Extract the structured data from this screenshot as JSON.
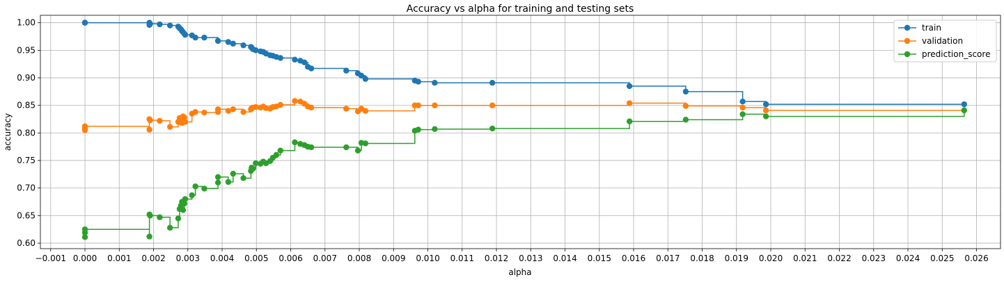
{
  "chart_data": {
    "type": "line",
    "title": "Accuracy vs alpha for training and testing sets",
    "xlabel": "alpha",
    "ylabel": "accuracy",
    "xlim": [
      -0.0013,
      0.0267
    ],
    "ylim": [
      0.59,
      1.0135
    ],
    "grid": true,
    "legend_position": "top-right",
    "drawstyle": "steps-post",
    "marker": "o",
    "xticks": [
      "−0.001",
      "0.000",
      "0.001",
      "0.002",
      "0.003",
      "0.004",
      "0.005",
      "0.006",
      "0.007",
      "0.008",
      "0.009",
      "0.010",
      "0.011",
      "0.012",
      "0.013",
      "0.014",
      "0.015",
      "0.016",
      "0.017",
      "0.018",
      "0.019",
      "0.020",
      "0.021",
      "0.022",
      "0.023",
      "0.024",
      "0.025",
      "0.026"
    ],
    "xtick_values": [
      -0.001,
      0.0,
      0.001,
      0.002,
      0.003,
      0.004,
      0.005,
      0.006,
      0.007,
      0.008,
      0.009,
      0.01,
      0.011,
      0.012,
      0.013,
      0.014,
      0.015,
      0.016,
      0.017,
      0.018,
      0.019,
      0.02,
      0.021,
      0.022,
      0.023,
      0.024,
      0.025,
      0.026
    ],
    "yticks": [
      "0.60",
      "0.65",
      "0.70",
      "0.75",
      "0.80",
      "0.85",
      "0.90",
      "0.95",
      "1.00"
    ],
    "ytick_values": [
      0.6,
      0.65,
      0.7,
      0.75,
      0.8,
      0.85,
      0.9,
      0.95,
      1.0
    ],
    "x": [
      0.0,
      0.0,
      0.0,
      0.00188,
      0.00188,
      0.0019,
      0.00218,
      0.00248,
      0.00272,
      0.00276,
      0.0028,
      0.00283,
      0.00286,
      0.0029,
      0.00292,
      0.00312,
      0.00322,
      0.00348,
      0.00388,
      0.00388,
      0.00418,
      0.00432,
      0.00462,
      0.00484,
      0.00486,
      0.0049,
      0.00498,
      0.00512,
      0.0052,
      0.00528,
      0.0054,
      0.00548,
      0.00558,
      0.0057,
      0.00612,
      0.00628,
      0.0064,
      0.0065,
      0.0066,
      0.00762,
      0.00796,
      0.00806,
      0.00818,
      0.00962,
      0.00972,
      0.0102,
      0.01188,
      0.01588,
      0.01752,
      0.01918,
      0.01986,
      0.02564
    ],
    "series": [
      {
        "name": "train",
        "color": "#1f77b4",
        "values": [
          1.0,
          1.0,
          1.0,
          1.0,
          0.996,
          0.998,
          0.997,
          0.995,
          0.993,
          0.99,
          0.988,
          0.985,
          0.983,
          0.98,
          0.978,
          0.977,
          0.973,
          0.973,
          0.967,
          0.967,
          0.965,
          0.962,
          0.959,
          0.956,
          0.955,
          0.952,
          0.95,
          0.948,
          0.947,
          0.944,
          0.941,
          0.94,
          0.938,
          0.936,
          0.933,
          0.931,
          0.928,
          0.92,
          0.917,
          0.913,
          0.908,
          0.904,
          0.898,
          0.895,
          0.893,
          0.891,
          0.891,
          0.885,
          0.875,
          0.857,
          0.852,
          0.852
        ]
      },
      {
        "name": "validation",
        "color": "#ff7f0e",
        "values": [
          0.805,
          0.808,
          0.812,
          0.806,
          0.825,
          0.823,
          0.822,
          0.811,
          0.82,
          0.827,
          0.822,
          0.818,
          0.83,
          0.828,
          0.82,
          0.835,
          0.838,
          0.837,
          0.838,
          0.843,
          0.84,
          0.843,
          0.838,
          0.843,
          0.845,
          0.846,
          0.847,
          0.846,
          0.848,
          0.845,
          0.844,
          0.847,
          0.848,
          0.851,
          0.858,
          0.857,
          0.853,
          0.848,
          0.846,
          0.844,
          0.839,
          0.844,
          0.84,
          0.85,
          0.85,
          0.85,
          0.85,
          0.854,
          0.849,
          0.846,
          0.841,
          0.841
        ]
      },
      {
        "name": "prediction_score",
        "color": "#2ca02c",
        "values": [
          0.611,
          0.619,
          0.625,
          0.612,
          0.652,
          0.65,
          0.647,
          0.628,
          0.645,
          0.662,
          0.668,
          0.675,
          0.66,
          0.672,
          0.68,
          0.687,
          0.703,
          0.699,
          0.71,
          0.72,
          0.711,
          0.726,
          0.718,
          0.731,
          0.737,
          0.735,
          0.745,
          0.744,
          0.748,
          0.745,
          0.749,
          0.755,
          0.76,
          0.768,
          0.783,
          0.78,
          0.778,
          0.775,
          0.774,
          0.774,
          0.768,
          0.782,
          0.781,
          0.804,
          0.806,
          0.807,
          0.808,
          0.821,
          0.824,
          0.834,
          0.83,
          0.841
        ]
      }
    ]
  }
}
